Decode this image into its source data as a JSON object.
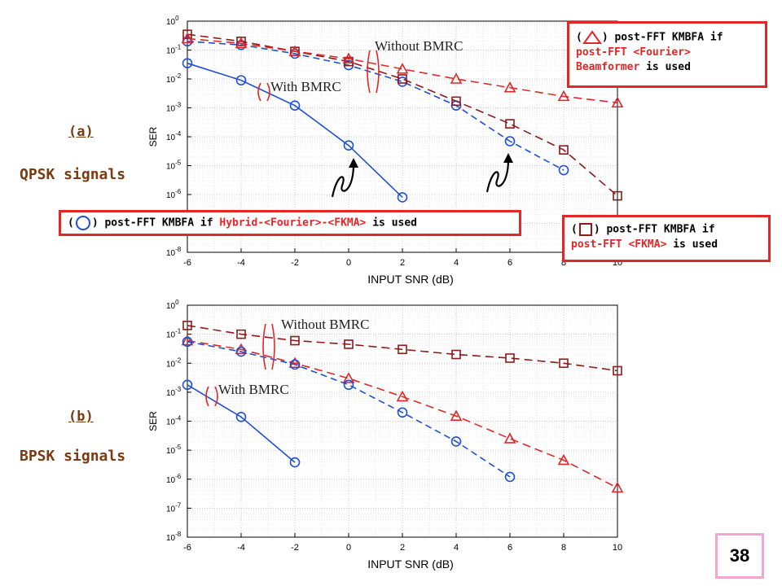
{
  "chart_data": [
    {
      "type": "line",
      "panel": "(a)",
      "subtitle": "QPSK signals",
      "xlabel": "INPUT SNR (dB)",
      "ylabel": "SER",
      "xlim": [
        -6,
        10
      ],
      "ylim_log10": [
        -8,
        0
      ],
      "x_ticks": [
        "-6",
        "-4",
        "-2",
        "0",
        "2",
        "4",
        "6",
        "8",
        "10"
      ],
      "y_scale": "log",
      "grid": true,
      "annotations": [
        "Without BMRC",
        "With BMRC"
      ],
      "series": [
        {
          "style": "circle-dashed-blue",
          "x": [
            -6,
            -4,
            -2,
            0,
            2,
            4,
            6,
            8
          ],
          "y": [
            0.2,
            0.15,
            0.075,
            0.03,
            0.008,
            0.0012,
            7e-05,
            7e-06
          ]
        },
        {
          "style": "square-dashed-darkred",
          "x": [
            -6,
            -4,
            -2,
            0,
            2,
            4,
            6,
            8,
            10
          ],
          "y": [
            0.35,
            0.2,
            0.09,
            0.04,
            0.01,
            0.0017,
            0.00028,
            3.5e-05,
            9e-07
          ]
        },
        {
          "style": "triangle-dashed-red",
          "x": [
            -6,
            -4,
            -2,
            0,
            2,
            4,
            6,
            8,
            10
          ],
          "y": [
            0.25,
            0.17,
            0.09,
            0.05,
            0.022,
            0.01,
            0.005,
            0.0025,
            0.0015
          ]
        },
        {
          "style": "circle-solid-blue",
          "x": [
            -6,
            -4,
            -2,
            0,
            2
          ],
          "y": [
            0.035,
            0.009,
            0.0012,
            5e-05,
            8e-07
          ]
        }
      ]
    },
    {
      "type": "line",
      "panel": "(b)",
      "subtitle": "BPSK signals",
      "xlabel": "INPUT SNR (dB)",
      "ylabel": "SER",
      "xlim": [
        -6,
        10
      ],
      "ylim_log10": [
        -8,
        0
      ],
      "x_ticks": [
        "-6",
        "-4",
        "-2",
        "0",
        "2",
        "4",
        "6",
        "8",
        "10"
      ],
      "y_scale": "log",
      "grid": true,
      "annotations": [
        "Without BMRC",
        "With BMRC"
      ],
      "series": [
        {
          "style": "square-dashed-darkred",
          "x": [
            -6,
            -4,
            -2,
            0,
            2,
            4,
            6,
            8,
            10
          ],
          "y": [
            0.2,
            0.1,
            0.06,
            0.045,
            0.03,
            0.02,
            0.015,
            0.01,
            0.0055
          ]
        },
        {
          "style": "triangle-dashed-red",
          "x": [
            -6,
            -4,
            -2,
            0,
            2,
            4,
            6,
            8,
            10
          ],
          "y": [
            0.06,
            0.03,
            0.01,
            0.003,
            0.0007,
            0.00015,
            2.5e-05,
            4.5e-06,
            5e-07
          ]
        },
        {
          "style": "circle-dashed-blue",
          "x": [
            -6,
            -4,
            -2,
            0,
            2,
            4,
            6
          ],
          "y": [
            0.055,
            0.025,
            0.009,
            0.0018,
            0.0002,
            2e-05,
            1.2e-06
          ]
        },
        {
          "style": "circle-solid-blue",
          "x": [
            -6,
            -4,
            -2
          ],
          "y": [
            0.0018,
            0.00014,
            3.8e-06
          ]
        }
      ]
    }
  ],
  "legends": {
    "triangle": {
      "line1": ") post-FFT KMBFA if",
      "line2": "post-FFT <Fourier>",
      "line3": "Beamformer",
      "line3_tail": " is used"
    },
    "circle": {
      "pre": ") post-FFT KMBFA if ",
      "hl": "Hybrid-<Fourier>-<FKMA>",
      "post": " is used"
    },
    "square": {
      "line1": ") post-FFT KMBFA if",
      "line2": "post-FFT <FKMA>",
      "line2_tail": " is used"
    }
  },
  "labels": {
    "a_panel": "(a)",
    "a_sub": "QPSK signals",
    "b_panel": "(b)",
    "b_sub": "BPSK signals",
    "paren_open": "("
  },
  "page_number": "38",
  "colors": {
    "blue": "#1f4fd6",
    "red": "#e32626",
    "darkred": "#8b1a1a",
    "label": "#7a3b10"
  }
}
